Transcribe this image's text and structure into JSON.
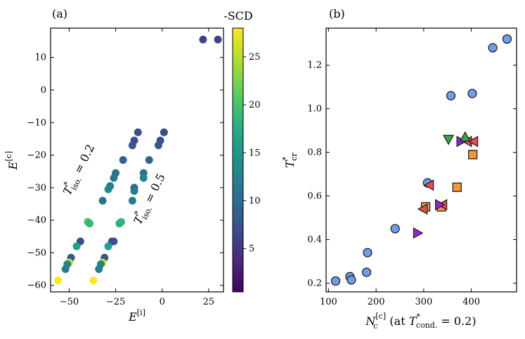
{
  "chart_data": [
    {
      "panel": "(a)",
      "type": "scatter",
      "xlabel": "E",
      "xlabel_sup": "[i]",
      "ylabel": "E",
      "ylabel_sup": "[c]",
      "xlim": [
        -60,
        33
      ],
      "ylim": [
        -62,
        19
      ],
      "xticks": [
        -50,
        -25,
        0,
        25
      ],
      "yticks": [
        -60,
        -50,
        -40,
        -30,
        -20,
        -10,
        0,
        10
      ],
      "colorbar": {
        "label": "-SCD",
        "min": 0.5,
        "max": 28,
        "ticks": [
          5,
          10,
          15,
          20,
          25
        ],
        "colormap": [
          "#440154",
          "#482878",
          "#3e4989",
          "#31688e",
          "#26828e",
          "#1f9e89",
          "#35b779",
          "#6ece58",
          "#b5de2b",
          "#fde725"
        ]
      },
      "annotations": [
        {
          "text_main": "T",
          "text_sup": "*",
          "text_sub": "iso.",
          "text_value": " = 0.2",
          "x": -43,
          "y": -25,
          "angle": -63
        },
        {
          "text_main": "T",
          "text_sup": "*",
          "text_sub": "iso.",
          "text_value": " = 0.5",
          "x": -5,
          "y": -34,
          "angle": -63
        }
      ],
      "points": [
        {
          "x": 22,
          "y": 15.5,
          "c": 6
        },
        {
          "x": 30,
          "y": 15.5,
          "c": 6
        },
        {
          "x": -13,
          "y": -13,
          "c": 7
        },
        {
          "x": -15,
          "y": -15.5,
          "c": 7
        },
        {
          "x": -16,
          "y": -17,
          "c": 8
        },
        {
          "x": -21,
          "y": -21.5,
          "c": 9
        },
        {
          "x": -25,
          "y": -25.5,
          "c": 11
        },
        {
          "x": -26,
          "y": -27,
          "c": 11
        },
        {
          "x": -28,
          "y": -29.5,
          "c": 12
        },
        {
          "x": -29,
          "y": -30.5,
          "c": 13
        },
        {
          "x": -32,
          "y": -34,
          "c": 11
        },
        {
          "x": -40,
          "y": -40.5,
          "c": 20
        },
        {
          "x": -39,
          "y": -41,
          "c": 19
        },
        {
          "x": -44,
          "y": -46.5,
          "c": 7
        },
        {
          "x": -46,
          "y": -48,
          "c": 16
        },
        {
          "x": -49,
          "y": -51.5,
          "c": 8
        },
        {
          "x": -50,
          "y": -53,
          "c": 26
        },
        {
          "x": -51,
          "y": -53.5,
          "c": 13
        },
        {
          "x": -52,
          "y": -55,
          "c": 12
        },
        {
          "x": -56,
          "y": -58.5,
          "c": 28
        },
        {
          "x": 1,
          "y": -13,
          "c": 7
        },
        {
          "x": -1,
          "y": -15.5,
          "c": 7
        },
        {
          "x": -2,
          "y": -17,
          "c": 8
        },
        {
          "x": -7,
          "y": -21.5,
          "c": 9
        },
        {
          "x": -10,
          "y": -25.5,
          "c": 11
        },
        {
          "x": -10,
          "y": -27,
          "c": 13
        },
        {
          "x": -15,
          "y": -30,
          "c": 9
        },
        {
          "x": -15,
          "y": -31,
          "c": 12
        },
        {
          "x": -16,
          "y": -34,
          "c": 12
        },
        {
          "x": -22,
          "y": -40.5,
          "c": 19
        },
        {
          "x": -23,
          "y": -41,
          "c": 18
        },
        {
          "x": -26,
          "y": -46.5,
          "c": 8
        },
        {
          "x": -27,
          "y": -46.5,
          "c": 7
        },
        {
          "x": -29,
          "y": -48,
          "c": 16
        },
        {
          "x": -31,
          "y": -51.5,
          "c": 8
        },
        {
          "x": -32,
          "y": -53,
          "c": 26
        },
        {
          "x": -33,
          "y": -53.5,
          "c": 13
        },
        {
          "x": -34,
          "y": -55,
          "c": 12
        },
        {
          "x": -37,
          "y": -58.5,
          "c": 28
        }
      ]
    },
    {
      "panel": "(b)",
      "type": "scatter",
      "xlabel_main": "N",
      "xlabel_sub": "c",
      "xlabel_sup": "[c]",
      "xlabel_paren_open": " (at ",
      "xlabel_t": "T",
      "xlabel_t_sup": "*",
      "xlabel_t_sub": "cond.",
      "xlabel_value": " = 0.2)",
      "ylabel_main": "T",
      "ylabel_sup": "*",
      "ylabel_sub": "cr",
      "xlim": [
        95,
        495
      ],
      "ylim": [
        0.16,
        1.37
      ],
      "xticks": [
        100,
        200,
        300,
        400
      ],
      "yticks": [
        0.2,
        0.4,
        0.6,
        0.8,
        1.0,
        1.2
      ],
      "ytick_labels": [
        "0.2",
        "0.4",
        "0.6",
        "0.8",
        "1.0",
        "1.2"
      ],
      "series": [
        {
          "name": "circle",
          "marker": "circle",
          "color": "#6f9ee8",
          "points": [
            [
              115,
              0.21
            ],
            [
              145,
              0.23
            ],
            [
              148,
              0.215
            ],
            [
              180,
              0.25
            ],
            [
              182,
              0.34
            ],
            [
              240,
              0.45
            ],
            [
              308,
              0.66
            ],
            [
              357,
              1.06
            ],
            [
              402,
              1.07
            ],
            [
              445,
              1.28
            ],
            [
              475,
              1.32
            ]
          ]
        },
        {
          "name": "square",
          "marker": "square",
          "color": "#f4963a",
          "points": [
            [
              304,
              0.55
            ],
            [
              337,
              0.55
            ],
            [
              370,
              0.64
            ],
            [
              403,
              0.79
            ]
          ]
        },
        {
          "name": "triangle-left",
          "marker": "triangle-left",
          "color": "#e24d4d",
          "points": [
            [
              299,
              0.54
            ],
            [
              312,
              0.65
            ],
            [
              340,
              0.56
            ],
            [
              392,
              0.85
            ],
            [
              405,
              0.85
            ]
          ]
        },
        {
          "name": "triangle-right",
          "marker": "triangle-right",
          "color": "#9a22d6",
          "points": [
            [
              287,
              0.43
            ],
            [
              333,
              0.56
            ],
            [
              378,
              0.85
            ]
          ]
        },
        {
          "name": "triangle-down",
          "marker": "triangle-down",
          "color": "#3aa64a",
          "points": [
            [
              352,
              0.86
            ]
          ]
        },
        {
          "name": "triangle-up",
          "marker": "triangle-up",
          "color": "#3aa64a",
          "points": [
            [
              387,
              0.87
            ]
          ]
        }
      ]
    }
  ]
}
